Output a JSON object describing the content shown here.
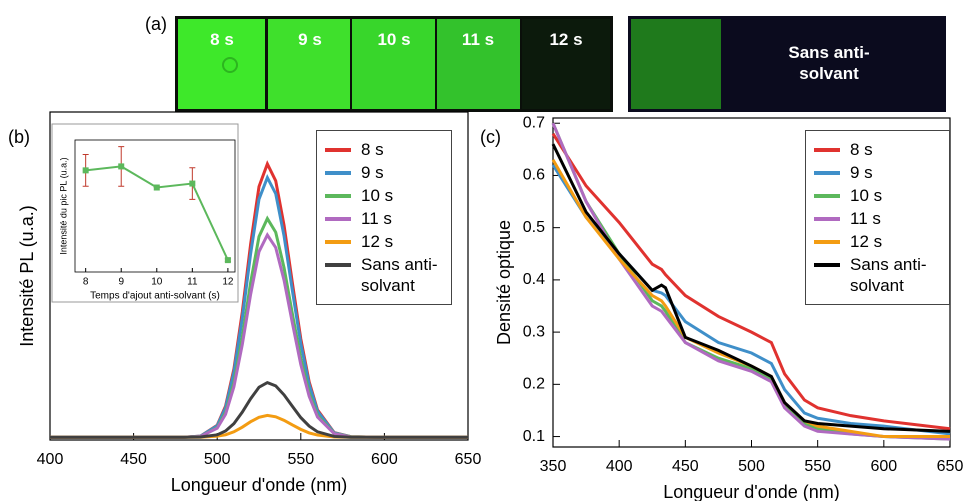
{
  "panels": {
    "a": "(a)",
    "b": "(b)",
    "c": "(c)"
  },
  "photo": {
    "labels": [
      "8 s",
      "9 s",
      "10 s",
      "11 s",
      "12 s",
      "Sans anti-solvant"
    ]
  },
  "chart_data": [
    {
      "type": "line",
      "ylabel": "Intensité PL (u.a.)",
      "xlabel": "Longueur d'onde (nm)",
      "x": [
        400,
        470,
        480,
        490,
        500,
        505,
        510,
        515,
        520,
        525,
        530,
        535,
        540,
        545,
        550,
        555,
        560,
        570,
        580,
        600,
        650
      ],
      "xlim": [
        400,
        650
      ],
      "xticks": [
        400,
        450,
        500,
        550,
        600,
        650
      ],
      "ylim": [
        0,
        1.2
      ],
      "legend": "upper right",
      "series": [
        {
          "name": "8 s",
          "color": "#e0322f",
          "values": [
            0.01,
            0.01,
            0.01,
            0.014,
            0.054,
            0.124,
            0.26,
            0.468,
            0.717,
            0.927,
            1.01,
            0.948,
            0.785,
            0.573,
            0.37,
            0.213,
            0.11,
            0.027,
            0.012,
            0.01,
            0.01
          ]
        },
        {
          "name": "9 s",
          "color": "#3f8fc9",
          "values": [
            0.01,
            0.01,
            0.01,
            0.014,
            0.052,
            0.118,
            0.248,
            0.445,
            0.682,
            0.881,
            0.96,
            0.901,
            0.746,
            0.545,
            0.352,
            0.203,
            0.105,
            0.026,
            0.012,
            0.01,
            0.01
          ]
        },
        {
          "name": "10 s",
          "color": "#5cb85c",
          "values": [
            0.01,
            0.01,
            0.01,
            0.013,
            0.045,
            0.101,
            0.21,
            0.376,
            0.576,
            0.744,
            0.81,
            0.76,
            0.63,
            0.46,
            0.298,
            0.172,
            0.09,
            0.024,
            0.012,
            0.01,
            0.01
          ]
        },
        {
          "name": "11 s",
          "color": "#b06ac0",
          "values": [
            0.01,
            0.01,
            0.01,
            0.013,
            0.043,
            0.094,
            0.195,
            0.349,
            0.533,
            0.689,
            0.75,
            0.704,
            0.584,
            0.427,
            0.276,
            0.16,
            0.084,
            0.023,
            0.011,
            0.01,
            0.01
          ]
        },
        {
          "name": "12 s",
          "color": "#f39c12",
          "values": [
            0.01,
            0.01,
            0.01,
            0.01,
            0.014,
            0.019,
            0.03,
            0.047,
            0.067,
            0.083,
            0.09,
            0.085,
            0.072,
            0.055,
            0.039,
            0.026,
            0.018,
            0.011,
            0.01,
            0.01,
            0.01
          ]
        },
        {
          "name": "Sans anti-solvant",
          "color": "#404040",
          "values": [
            0.01,
            0.01,
            0.01,
            0.011,
            0.019,
            0.033,
            0.06,
            0.102,
            0.151,
            0.193,
            0.21,
            0.198,
            0.165,
            0.123,
            0.082,
            0.051,
            0.03,
            0.013,
            0.01,
            0.01,
            0.01
          ]
        }
      ]
    },
    {
      "type": "errorline",
      "ylabel": "Intensité du pic PL (u.a.)",
      "xlabel": "Temps d'ajout anti-solvant (s)",
      "x": [
        8,
        9,
        10,
        11,
        12
      ],
      "values": [
        0.77,
        0.8,
        0.64,
        0.67,
        0.09
      ],
      "errors": [
        0.12,
        0.15,
        0,
        0.12,
        0.01
      ],
      "color": "#5cb85c",
      "error_color": "#c0392b",
      "xlim": [
        7.7,
        12.2
      ],
      "xticks": [
        8,
        9,
        10,
        11,
        12
      ],
      "ylim": [
        0,
        1
      ]
    },
    {
      "type": "line",
      "ylabel": "Densité optique",
      "xlabel": "Longueur d'onde (nm)",
      "x": [
        350,
        375,
        400,
        425,
        432,
        435,
        450,
        475,
        500,
        515,
        525,
        540,
        550,
        575,
        600,
        650
      ],
      "xlim": [
        350,
        650
      ],
      "xticks": [
        350,
        400,
        450,
        500,
        550,
        600,
        650
      ],
      "ylim": [
        0.08,
        0.71
      ],
      "yticks": [
        0.1,
        0.2,
        0.3,
        0.4,
        0.5,
        0.6,
        0.7
      ],
      "legend": "upper right",
      "series": [
        {
          "name": "8 s",
          "color": "#e0322f",
          "values": [
            0.68,
            0.58,
            0.51,
            0.43,
            0.42,
            0.41,
            0.37,
            0.33,
            0.3,
            0.28,
            0.22,
            0.17,
            0.155,
            0.14,
            0.13,
            0.115
          ]
        },
        {
          "name": "9 s",
          "color": "#3f8fc9",
          "values": [
            0.62,
            0.52,
            0.45,
            0.38,
            0.375,
            0.37,
            0.32,
            0.28,
            0.26,
            0.24,
            0.19,
            0.145,
            0.135,
            0.125,
            0.12,
            0.105
          ]
        },
        {
          "name": "10 s",
          "color": "#5cb85c",
          "values": [
            0.7,
            0.55,
            0.45,
            0.36,
            0.35,
            0.34,
            0.28,
            0.25,
            0.23,
            0.21,
            0.16,
            0.125,
            0.115,
            0.105,
            0.1,
            0.095
          ]
        },
        {
          "name": "11 s",
          "color": "#b06ac0",
          "values": [
            0.7,
            0.55,
            0.44,
            0.35,
            0.34,
            0.33,
            0.28,
            0.245,
            0.225,
            0.205,
            0.155,
            0.12,
            0.11,
            0.105,
            0.1,
            0.095
          ]
        },
        {
          "name": "12 s",
          "color": "#f39c12",
          "values": [
            0.63,
            0.52,
            0.44,
            0.37,
            0.36,
            0.35,
            0.29,
            0.26,
            0.235,
            0.215,
            0.165,
            0.13,
            0.12,
            0.11,
            0.1,
            0.1
          ]
        },
        {
          "name": "Sans anti-solvant",
          "color": "#000000",
          "values": [
            0.66,
            0.53,
            0.45,
            0.38,
            0.39,
            0.385,
            0.29,
            0.265,
            0.235,
            0.215,
            0.165,
            0.13,
            0.125,
            0.12,
            0.115,
            0.11
          ]
        }
      ]
    }
  ]
}
